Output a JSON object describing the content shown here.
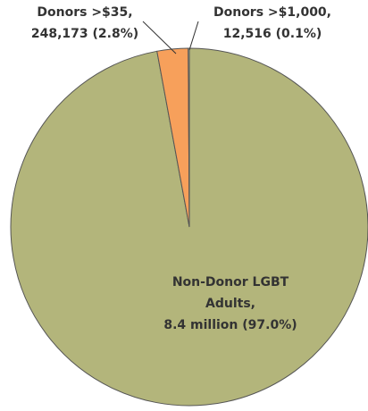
{
  "chart_data": {
    "type": "pie",
    "categories": [
      [
        "Non-Donor LGBT",
        "Adults,",
        "8.4 million (97.0%)"
      ],
      [
        "Donors >$35,",
        "248,173 (2.8%)"
      ],
      [
        "Donors >$1,000,",
        "12,516 (0.1%)"
      ]
    ],
    "values": [
      97.0,
      2.8,
      0.1
    ],
    "colors": [
      "#b3b57b",
      "#f7a05b",
      "#f3efc4"
    ]
  }
}
